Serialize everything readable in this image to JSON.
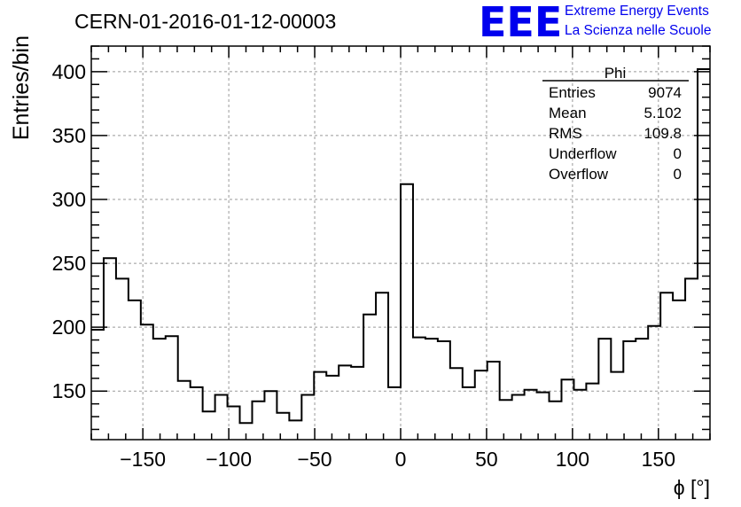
{
  "header": {
    "run_title": "CERN-01-2016-01-12-00003",
    "logo_text": "EEE",
    "logo_line1": "Extreme Energy Events",
    "logo_line2": "La Scienza nelle Scuole",
    "logo_color": "#0000ee"
  },
  "stats_box": {
    "title": "Phi",
    "rows": [
      {
        "label": "Entries",
        "value": "9074"
      },
      {
        "label": "Mean",
        "value": "5.102"
      },
      {
        "label": "RMS",
        "value": "109.8"
      },
      {
        "label": "Underflow",
        "value": "0"
      },
      {
        "label": "Overflow",
        "value": "0"
      }
    ]
  },
  "chart_data": {
    "type": "histogram",
    "xlabel": "ϕ [°]",
    "ylabel": "Entries/bin",
    "xlim": [
      -180,
      180
    ],
    "ylim": [
      112,
      420
    ],
    "bin_width": 7.2,
    "grid": true,
    "x_ticks": [
      -150,
      -100,
      -50,
      0,
      50,
      100,
      150
    ],
    "x_tick_labels": [
      "−150",
      "−100",
      "−50",
      "0",
      "50",
      "100",
      "150"
    ],
    "y_ticks": [
      150,
      200,
      250,
      300,
      350,
      400
    ],
    "y_tick_labels": [
      "150",
      "200",
      "250",
      "300",
      "350",
      "400"
    ],
    "values": [
      198,
      254,
      238,
      221,
      202,
      191,
      193,
      158,
      153,
      134,
      147,
      138,
      125,
      142,
      150,
      133,
      127,
      147,
      165,
      162,
      170,
      169,
      210,
      227,
      153,
      312,
      192,
      191,
      189,
      168,
      153,
      166,
      173,
      143,
      147,
      151,
      149,
      142,
      159,
      151,
      156,
      191,
      165,
      189,
      191,
      201,
      227,
      221,
      238,
      402
    ],
    "line_color": "#000000"
  }
}
